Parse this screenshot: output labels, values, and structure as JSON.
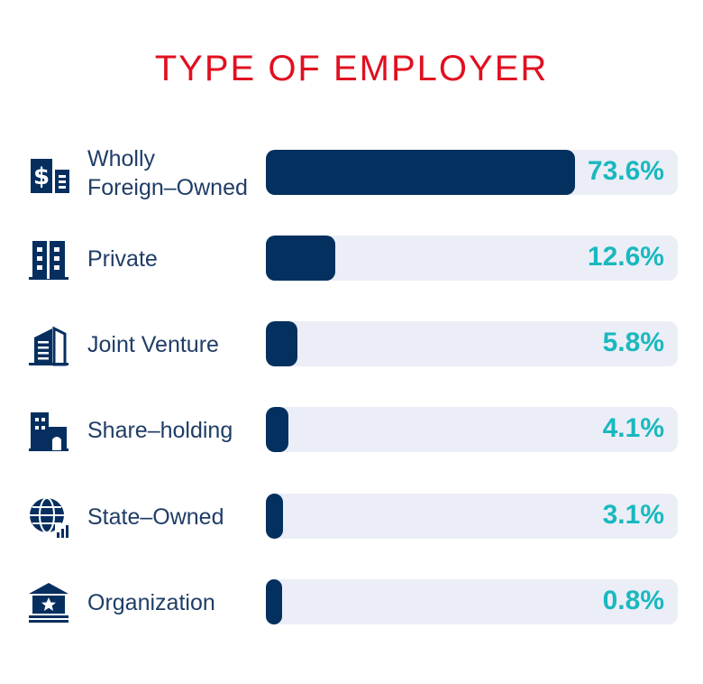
{
  "title": "TYPE OF EMPLOYER",
  "colors": {
    "title": "#e01020",
    "bar": "#03305f",
    "track": "#ebeef7",
    "value": "#1ab8bf",
    "icon": "#062f60"
  },
  "chart_data": {
    "type": "bar",
    "orientation": "horizontal",
    "title": "TYPE OF EMPLOYER",
    "categories": [
      "Wholly Foreign–Owned",
      "Private",
      "Joint Venture",
      "Share–holding",
      "State–Owned",
      "Organization"
    ],
    "values": [
      73.6,
      12.6,
      5.8,
      4.1,
      3.1,
      0.8
    ],
    "value_labels": [
      "73.6%",
      "12.6%",
      "5.8%",
      "4.1%",
      "3.1%",
      "0.8%"
    ],
    "label_lines": [
      [
        "Wholly",
        "Foreign–Owned"
      ],
      [
        "Private"
      ],
      [
        "Joint Venture"
      ],
      [
        "Share–holding"
      ],
      [
        "State–Owned"
      ],
      [
        "Organization"
      ]
    ],
    "icons": [
      "finance-building-icon",
      "office-building-icon",
      "skyscraper-icon",
      "factory-building-icon",
      "globe-chart-icon",
      "institution-star-icon"
    ],
    "xlim": [
      0,
      100
    ],
    "grid": false,
    "legend": "none"
  }
}
